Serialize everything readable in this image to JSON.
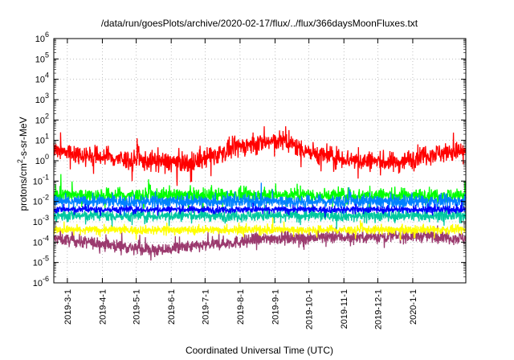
{
  "chart_data": {
    "type": "line",
    "title": "/data/run/goesPlots/archive/2020-02-17/flux/../flux/366daysMoonFluxes.txt",
    "xlabel": "Coordinated Universal Time (UTC)",
    "ylabel": "protons/cm2-s-sr-MeV",
    "ylabel_parts": {
      "base": "protons/cm",
      "sup": "2",
      "rest": "-s-sr-MeV"
    },
    "y_scale": "log",
    "ylim": [
      1e-06,
      1000000.0
    ],
    "xlim": [
      "2019-02-17",
      "2020-02-17"
    ],
    "grid": true,
    "x_ticks": [
      {
        "label": "2019-3-1",
        "date": "2019-03-01"
      },
      {
        "label": "2019-4-1",
        "date": "2019-04-01"
      },
      {
        "label": "2019-5-1",
        "date": "2019-05-01"
      },
      {
        "label": "2019-6-1",
        "date": "2019-06-01"
      },
      {
        "label": "2019-7-1",
        "date": "2019-07-01"
      },
      {
        "label": "2019-8-1",
        "date": "2019-08-01"
      },
      {
        "label": "2019-9-1",
        "date": "2019-09-01"
      },
      {
        "label": "2019-10-1",
        "date": "2019-10-01"
      },
      {
        "label": "2019-11-1",
        "date": "2019-11-01"
      },
      {
        "label": "2019-12-1",
        "date": "2019-12-01"
      },
      {
        "label": "2020-1-1",
        "date": "2020-01-01"
      }
    ],
    "y_ticks": [
      {
        "base": "10",
        "exp": "6",
        "value": 1000000.0
      },
      {
        "base": "10",
        "exp": "5",
        "value": 100000.0
      },
      {
        "base": "10",
        "exp": "4",
        "value": 10000.0
      },
      {
        "base": "10",
        "exp": "3",
        "value": 1000.0
      },
      {
        "base": "10",
        "exp": "2",
        "value": 100.0
      },
      {
        "base": "10",
        "exp": "1",
        "value": 10.0
      },
      {
        "base": "10",
        "exp": "0",
        "value": 1.0
      },
      {
        "base": "10",
        "exp": "-1",
        "value": 0.1
      },
      {
        "base": "10",
        "exp": "-2",
        "value": 0.01
      },
      {
        "base": "10",
        "exp": "-3",
        "value": 0.001
      },
      {
        "base": "10",
        "exp": "-4",
        "value": 0.0001
      },
      {
        "base": "10",
        "exp": "-5",
        "value": 1e-05
      },
      {
        "base": "10",
        "exp": "-6",
        "value": 1e-06
      }
    ],
    "series": [
      {
        "color": "#9b3a6e",
        "typical": 0.00015,
        "spread": 0.22,
        "points": [
          [
            "2019-02-17",
            0.00015
          ],
          [
            "2019-05-20",
            4e-05
          ],
          [
            "2019-09-01",
            0.00016
          ],
          [
            "2020-01-15",
            0.0002
          ],
          [
            "2020-02-17",
            0.00015
          ]
        ]
      },
      {
        "color": "#ffff00",
        "typical": 0.0004,
        "spread": 0.15,
        "points": [
          [
            "2019-02-17",
            0.0004
          ],
          [
            "2020-02-17",
            0.0004
          ]
        ]
      },
      {
        "color": "#00c8a0",
        "typical": 0.002,
        "spread": 0.2,
        "points": [
          [
            "2019-02-17",
            0.002
          ],
          [
            "2020-02-17",
            0.002
          ]
        ]
      },
      {
        "color": "#00ff00",
        "typical": 0.02,
        "spread": 0.25,
        "points": [
          [
            "2019-02-17",
            0.02
          ],
          [
            "2020-02-17",
            0.02
          ]
        ]
      },
      {
        "color": "#0080ff",
        "typical": 0.01,
        "spread": 0.22,
        "points": [
          [
            "2019-02-17",
            0.01
          ],
          [
            "2020-02-17",
            0.01
          ]
        ]
      },
      {
        "color": "#0000ff",
        "typical": 0.004,
        "spread": 0.12,
        "points": [
          [
            "2019-02-17",
            0.004
          ],
          [
            "2020-02-17",
            0.004
          ]
        ]
      },
      {
        "color": "#ff0000",
        "typical": 2.0,
        "spread": 0.35,
        "points": [
          [
            "2019-02-17",
            3
          ],
          [
            "2019-03-15",
            2
          ],
          [
            "2019-05-01",
            1
          ],
          [
            "2019-06-20",
            0.8
          ],
          [
            "2019-08-01",
            5
          ],
          [
            "2019-09-05",
            10
          ],
          [
            "2019-10-10",
            2
          ],
          [
            "2019-11-15",
            1
          ],
          [
            "2019-12-20",
            0.8
          ],
          [
            "2020-01-10",
            2
          ],
          [
            "2020-02-17",
            3
          ]
        ]
      }
    ]
  }
}
